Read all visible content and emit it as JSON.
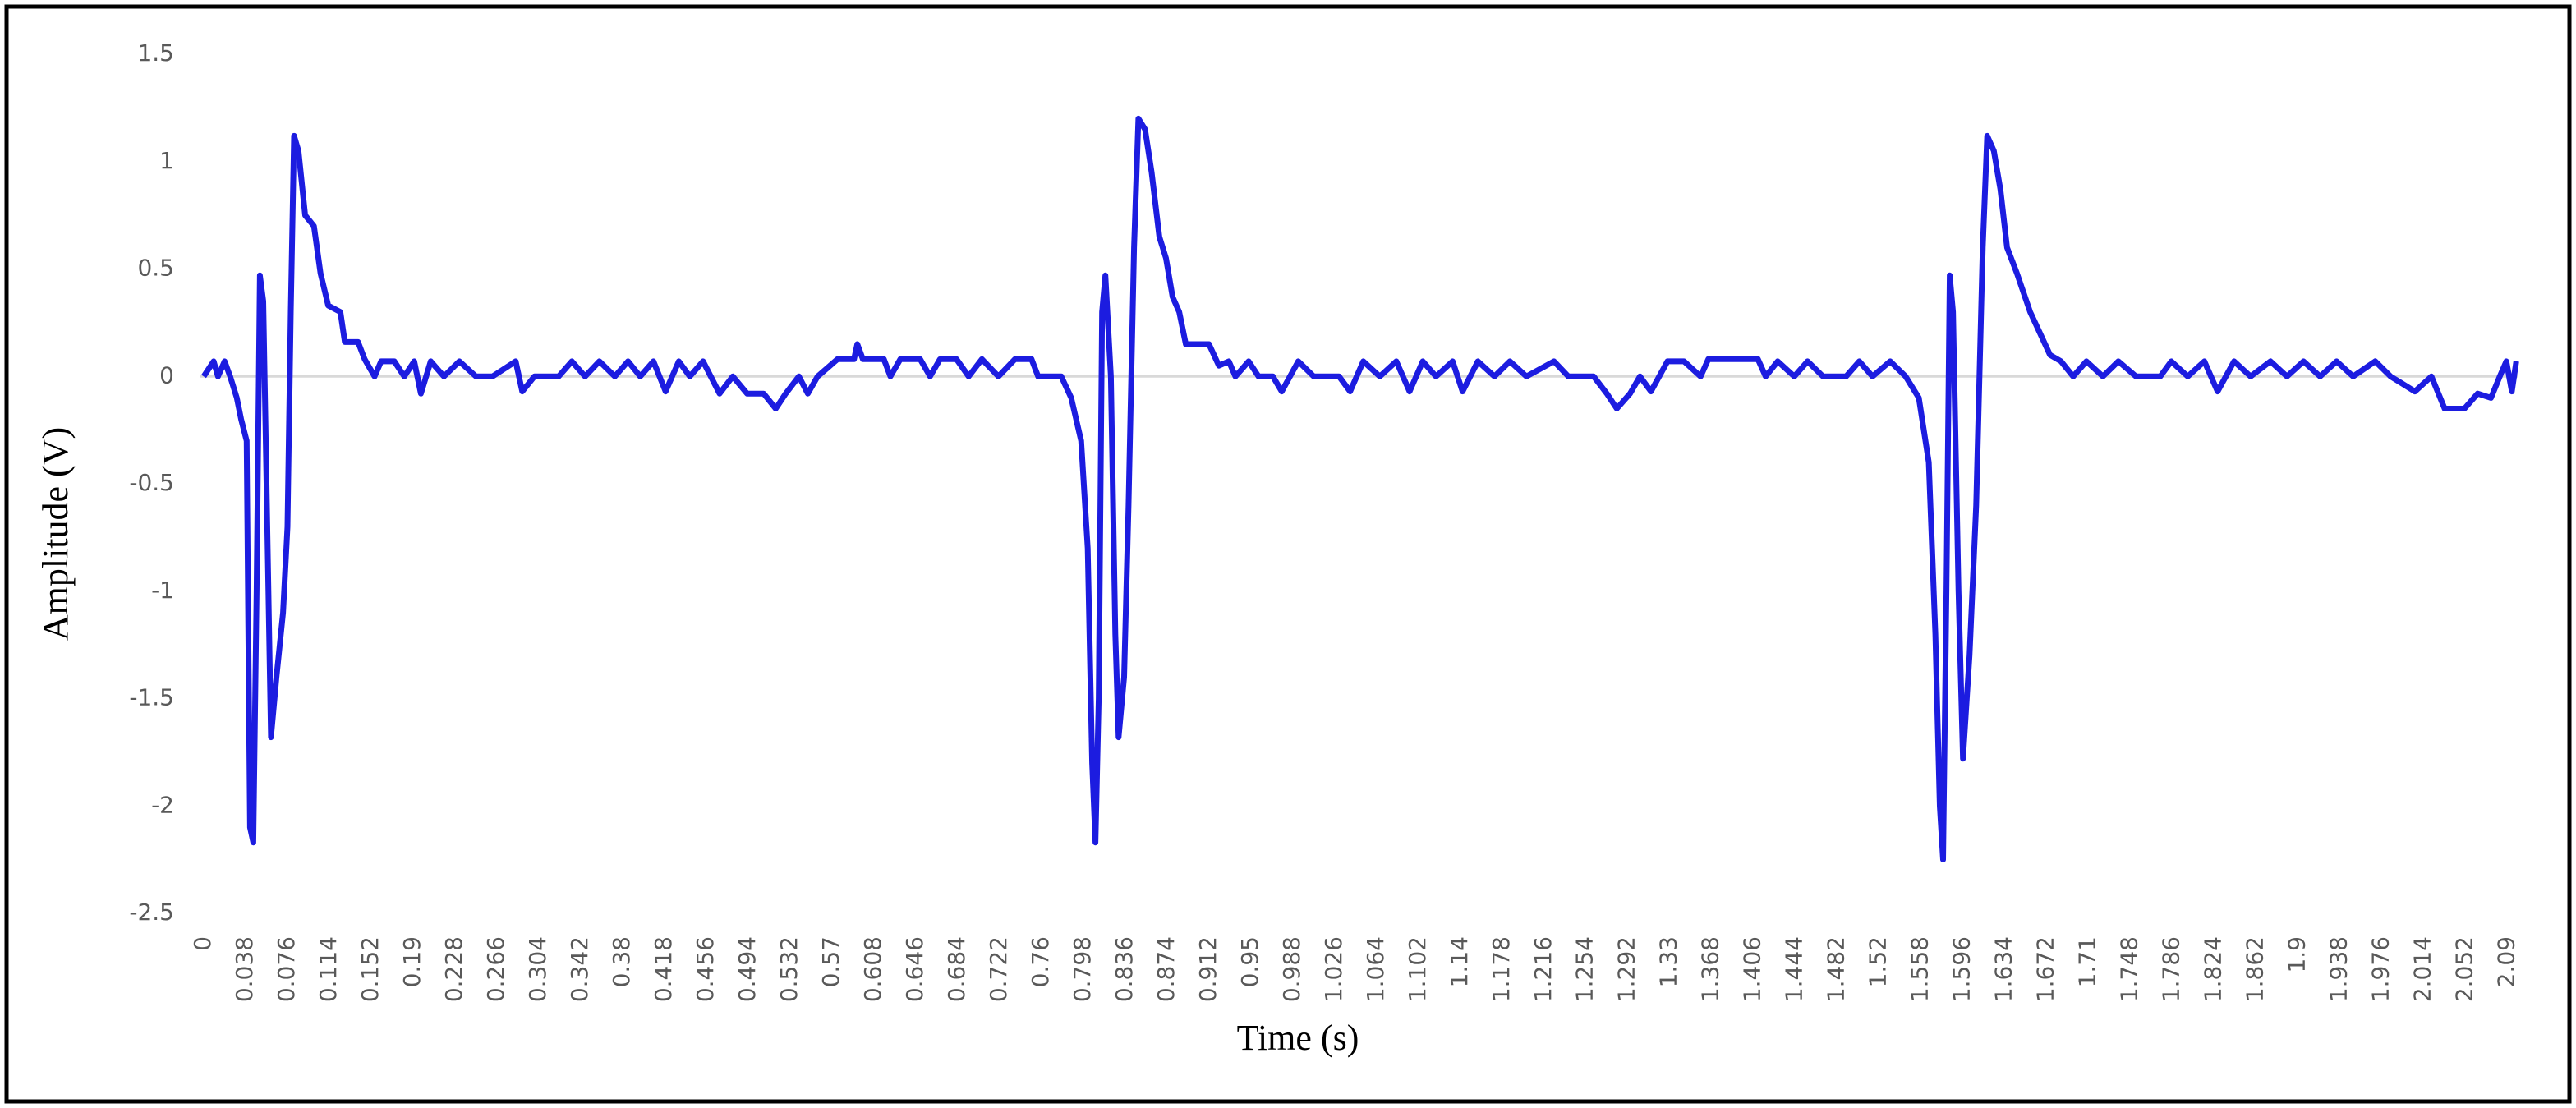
{
  "chart_data": {
    "type": "line",
    "x_label": "Time (s)",
    "y_label": "Amplitude (V)",
    "color": "#1c1ce0",
    "xlim": [
      0,
      2.1
    ],
    "ylim": [
      -2.5,
      1.5
    ],
    "yticks": [
      1.5,
      1,
      0.5,
      0,
      -0.5,
      -1,
      -1.5,
      -2,
      -2.5
    ],
    "xticks": [
      0,
      0.038,
      0.076,
      0.114,
      0.152,
      0.19,
      0.228,
      0.266,
      0.304,
      0.342,
      0.38,
      0.418,
      0.456,
      0.494,
      0.532,
      0.57,
      0.608,
      0.646,
      0.684,
      0.722,
      0.76,
      0.798,
      0.836,
      0.874,
      0.912,
      0.95,
      0.988,
      1.026,
      1.064,
      1.102,
      1.14,
      1.178,
      1.216,
      1.254,
      1.292,
      1.33,
      1.368,
      1.406,
      1.444,
      1.482,
      1.52,
      1.558,
      1.596,
      1.634,
      1.672,
      1.71,
      1.748,
      1.786,
      1.824,
      1.862,
      1.9,
      1.938,
      1.976,
      2.014,
      2.052,
      2.09
    ],
    "x": [
      0,
      0.009,
      0.013,
      0.019,
      0.024,
      0.03,
      0.034,
      0.039,
      0.042,
      0.045,
      0.048,
      0.051,
      0.054,
      0.057,
      0.061,
      0.066,
      0.072,
      0.076,
      0.079,
      0.082,
      0.086,
      0.092,
      0.1,
      0.106,
      0.113,
      0.124,
      0.128,
      0.14,
      0.146,
      0.155,
      0.161,
      0.173,
      0.182,
      0.191,
      0.197,
      0.206,
      0.218,
      0.232,
      0.247,
      0.262,
      0.283,
      0.289,
      0.3,
      0.322,
      0.334,
      0.346,
      0.359,
      0.373,
      0.385,
      0.396,
      0.408,
      0.419,
      0.431,
      0.441,
      0.453,
      0.468,
      0.48,
      0.493,
      0.508,
      0.519,
      0.528,
      0.54,
      0.548,
      0.557,
      0.575,
      0.59,
      0.593,
      0.598,
      0.617,
      0.623,
      0.632,
      0.65,
      0.659,
      0.668,
      0.683,
      0.694,
      0.706,
      0.721,
      0.736,
      0.751,
      0.757,
      0.778,
      0.787,
      0.796,
      0.802,
      0.806,
      0.809,
      0.812,
      0.815,
      0.818,
      0.823,
      0.827,
      0.83,
      0.835,
      0.839,
      0.844,
      0.848,
      0.854,
      0.86,
      0.867,
      0.873,
      0.879,
      0.885,
      0.891,
      0.912,
      0.921,
      0.93,
      0.936,
      0.948,
      0.957,
      0.97,
      0.978,
      0.993,
      1.007,
      1.03,
      1.04,
      1.052,
      1.067,
      1.082,
      1.094,
      1.106,
      1.118,
      1.133,
      1.142,
      1.156,
      1.171,
      1.185,
      1.2,
      1.225,
      1.238,
      1.261,
      1.273,
      1.282,
      1.294,
      1.303,
      1.313,
      1.328,
      1.343,
      1.358,
      1.365,
      1.41,
      1.417,
      1.428,
      1.443,
      1.455,
      1.469,
      1.49,
      1.502,
      1.514,
      1.53,
      1.544,
      1.556,
      1.565,
      1.571,
      1.575,
      1.578,
      1.581,
      1.584,
      1.587,
      1.592,
      1.596,
      1.602,
      1.608,
      1.614,
      1.618,
      1.624,
      1.63,
      1.636,
      1.645,
      1.657,
      1.666,
      1.675,
      1.685,
      1.696,
      1.708,
      1.723,
      1.737,
      1.753,
      1.775,
      1.785,
      1.8,
      1.815,
      1.827,
      1.842,
      1.857,
      1.875,
      1.89,
      1.905,
      1.92,
      1.935,
      1.95,
      1.97,
      1.984,
      2.006,
      2.021,
      2.033,
      2.051,
      2.063,
      2.075,
      2.083,
      2.089,
      2.094,
      2.098
    ],
    "values": [
      0,
      0.07,
      0,
      0.07,
      0,
      -0.1,
      -0.2,
      -0.3,
      -2.1,
      -2.17,
      -1.0,
      0.47,
      0.35,
      -0.5,
      -1.68,
      -1.4,
      -1.1,
      -0.7,
      0.3,
      1.12,
      1.05,
      0.75,
      0.7,
      0.48,
      0.33,
      0.3,
      0.16,
      0.16,
      0.08,
      0,
      0.07,
      0.07,
      0,
      0.07,
      -0.08,
      0.07,
      0,
      0.07,
      0,
      0,
      0.07,
      -0.07,
      0,
      0,
      0.07,
      0,
      0.07,
      0,
      0.07,
      0,
      0.07,
      -0.07,
      0.07,
      0,
      0.07,
      -0.08,
      0,
      -0.08,
      -0.08,
      -0.15,
      -0.08,
      0,
      -0.08,
      0,
      0.08,
      0.08,
      0.15,
      0.08,
      0.08,
      0,
      0.08,
      0.08,
      0,
      0.08,
      0.08,
      0,
      0.08,
      0,
      0.08,
      0.08,
      0,
      0,
      -0.1,
      -0.3,
      -0.8,
      -1.8,
      -2.17,
      -1.5,
      0.3,
      0.47,
      0.0,
      -1.2,
      -1.68,
      -1.4,
      -0.6,
      0.6,
      1.2,
      1.15,
      0.95,
      0.65,
      0.55,
      0.37,
      0.3,
      0.15,
      0.15,
      0.05,
      0.07,
      0,
      0.07,
      0,
      0,
      -0.07,
      0.07,
      0,
      0,
      -0.07,
      0.07,
      0,
      0.07,
      -0.07,
      0.07,
      0,
      0.07,
      -0.07,
      0.07,
      0,
      0.07,
      0,
      0.07,
      0,
      0,
      -0.08,
      -0.15,
      -0.08,
      0,
      -0.07,
      0.07,
      0.07,
      0,
      0.08,
      0.08,
      0,
      0.07,
      0,
      0.07,
      0,
      0,
      0.07,
      0,
      0.07,
      0,
      -0.1,
      -0.4,
      -1.2,
      -2.0,
      -2.25,
      -1.0,
      0.47,
      0.3,
      -1.0,
      -1.78,
      -1.3,
      -0.6,
      0.6,
      1.12,
      1.05,
      0.87,
      0.6,
      0.48,
      0.3,
      0.2,
      0.1,
      0.07,
      0,
      0.07,
      0,
      0.07,
      0,
      0,
      0.07,
      0,
      0.07,
      -0.07,
      0.07,
      0,
      0.07,
      0,
      0.07,
      0,
      0.07,
      0,
      0.07,
      0,
      -0.07,
      0,
      -0.15,
      -0.15,
      -0.08,
      -0.1,
      0,
      0.07,
      -0.07,
      0.07
    ]
  }
}
